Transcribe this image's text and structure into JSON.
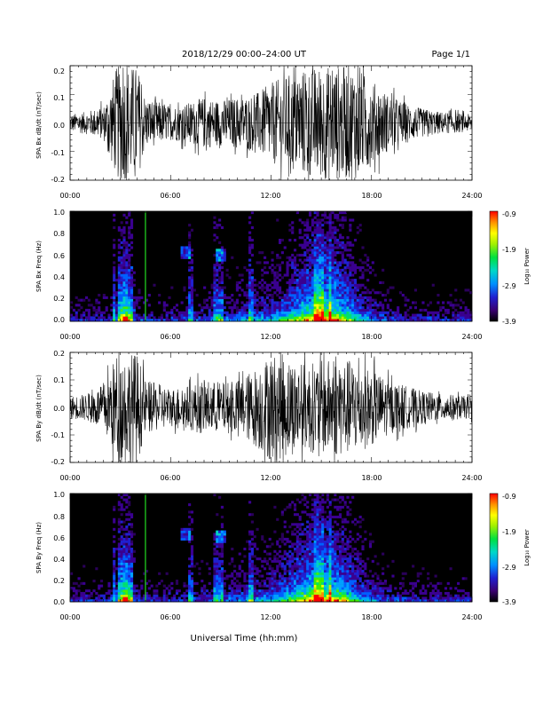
{
  "header": {
    "title": "2018/12/29   00:00–24:00 UT",
    "page": "Page 1/1"
  },
  "x_axis": {
    "label": "Universal Time (hh:mm)",
    "ticks": [
      "00:00",
      "06:00",
      "12:00",
      "18:00",
      "24:00"
    ],
    "range": [
      0,
      24
    ]
  },
  "colorbar": {
    "label": "Log₁₀ Power",
    "ticks": [
      "-0.9",
      "-1.9",
      "-2.9",
      "-3.9"
    ],
    "range": [
      -3.9,
      -0.9
    ]
  },
  "colors": {
    "trace": "#000000",
    "highlight_line": "#22dd22"
  },
  "chart_data": [
    {
      "type": "line",
      "ylabel": "SPA Bx dB/dt (nT/sec)",
      "ylim": [
        -0.2,
        0.2
      ],
      "yticks": [
        "0.2",
        "0.1",
        "0.0",
        "-0.1",
        "-0.2"
      ],
      "x_hours": [
        0,
        1,
        2,
        2.8,
        3.3,
        4,
        4.5,
        6,
        7,
        8,
        9,
        10,
        11,
        12,
        13,
        14,
        15,
        16,
        17,
        18,
        19,
        20,
        21,
        22,
        23,
        24
      ],
      "amplitude": [
        0.03,
        0.04,
        0.06,
        0.2,
        0.2,
        0.2,
        0.09,
        0.06,
        0.07,
        0.09,
        0.08,
        0.09,
        0.1,
        0.14,
        0.17,
        0.19,
        0.2,
        0.2,
        0.2,
        0.15,
        0.1,
        0.07,
        0.05,
        0.04,
        0.035,
        0.03
      ]
    },
    {
      "type": "heatmap",
      "ylabel": "SPA Bx Freq (Hz)",
      "ylim": [
        0,
        1.0
      ],
      "yticks": [
        "1.0",
        "0.8",
        "0.6",
        "0.4",
        "0.2",
        "0.0"
      ],
      "color_scale": "log10 power -3.9 to -0.9",
      "marker_hour": 4.5
    },
    {
      "type": "line",
      "ylabel": "SPA By dB/dt (nT/sec)",
      "ylim": [
        -0.2,
        0.2
      ],
      "yticks": [
        "0.2",
        "0.1",
        "0.0",
        "-0.1",
        "-0.2"
      ],
      "x_hours": [
        0,
        1,
        2,
        2.8,
        3.3,
        4,
        4.5,
        6,
        7,
        8,
        9,
        10,
        11,
        12,
        13,
        14,
        15,
        16,
        17,
        18,
        19,
        20,
        21,
        22,
        23,
        24
      ],
      "amplitude": [
        0.04,
        0.05,
        0.08,
        0.2,
        0.2,
        0.2,
        0.1,
        0.07,
        0.08,
        0.1,
        0.09,
        0.1,
        0.14,
        0.2,
        0.18,
        0.16,
        0.17,
        0.18,
        0.17,
        0.14,
        0.1,
        0.08,
        0.06,
        0.05,
        0.045,
        0.04
      ]
    },
    {
      "type": "heatmap",
      "ylabel": "SPA By Freq (Hz)",
      "ylim": [
        0,
        1.0
      ],
      "yticks": [
        "1.0",
        "0.8",
        "0.6",
        "0.4",
        "0.2",
        "0.0"
      ],
      "color_scale": "log10 power -3.9 to -0.9",
      "marker_hour": 4.5
    }
  ]
}
